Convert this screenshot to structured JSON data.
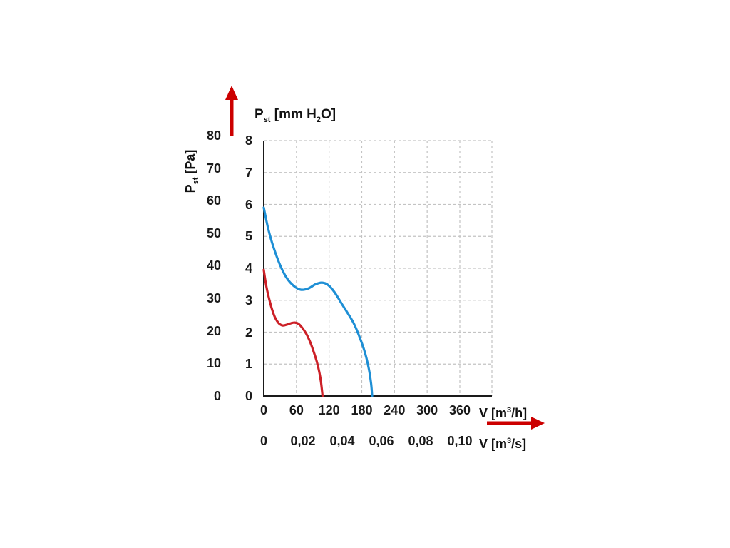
{
  "chart_data": {
    "type": "line",
    "title_parts": {
      "symbol": "P",
      "symbol_sub": "st",
      "unit_pre": " [mm H",
      "unit_sub": "2",
      "unit_post": "O]"
    },
    "y_axis_pa": {
      "label_parts": {
        "symbol": "P",
        "symbol_sub": "st",
        "unit": " [Pa]"
      },
      "pa_per_mm_h2o": 9.80665,
      "ticks": [
        {
          "label": "80",
          "value": 80
        },
        {
          "label": "70",
          "value": 70
        },
        {
          "label": "60",
          "value": 60
        },
        {
          "label": "50",
          "value": 50
        },
        {
          "label": "40",
          "value": 40
        },
        {
          "label": "30",
          "value": 30
        },
        {
          "label": "20",
          "value": 20
        },
        {
          "label": "10",
          "value": 10
        },
        {
          "label": "0",
          "value": 0
        }
      ]
    },
    "y_axis_mm": {
      "range": [
        0,
        8
      ],
      "ticks": [
        {
          "label": "8",
          "value": 8
        },
        {
          "label": "7",
          "value": 7
        },
        {
          "label": "6",
          "value": 6
        },
        {
          "label": "5",
          "value": 5
        },
        {
          "label": "4",
          "value": 4
        },
        {
          "label": "3",
          "value": 3
        },
        {
          "label": "2",
          "value": 2
        },
        {
          "label": "1",
          "value": 1
        },
        {
          "label": "0",
          "value": 0
        }
      ]
    },
    "x_axis_m3h": {
      "label_parts": {
        "pre": "V [m",
        "sup": "3",
        "post": "/h]"
      },
      "range": [
        0,
        420
      ],
      "ticks": [
        {
          "label": "0",
          "value": 0
        },
        {
          "label": "60",
          "value": 60
        },
        {
          "label": "120",
          "value": 120
        },
        {
          "label": "180",
          "value": 180
        },
        {
          "label": "240",
          "value": 240
        },
        {
          "label": "300",
          "value": 300
        },
        {
          "label": "360",
          "value": 360
        }
      ]
    },
    "x_axis_m3s": {
      "label_parts": {
        "pre": "V [m",
        "sup": "3",
        "post": "/s]"
      },
      "m3h_per_m3s": 3600,
      "ticks": [
        {
          "label": "0",
          "value": 0
        },
        {
          "label": "0,02",
          "value": 0.02
        },
        {
          "label": "0,04",
          "value": 0.04
        },
        {
          "label": "0,06",
          "value": 0.06
        },
        {
          "label": "0,08",
          "value": 0.08
        },
        {
          "label": "0,10",
          "value": 0.1
        }
      ]
    },
    "series": [
      {
        "name": "curve-blue",
        "color": "#1e8fd5",
        "points": [
          [
            0,
            5.9
          ],
          [
            8,
            5.25
          ],
          [
            18,
            4.65
          ],
          [
            30,
            4.1
          ],
          [
            42,
            3.7
          ],
          [
            55,
            3.45
          ],
          [
            68,
            3.33
          ],
          [
            82,
            3.37
          ],
          [
            95,
            3.5
          ],
          [
            107,
            3.55
          ],
          [
            118,
            3.48
          ],
          [
            130,
            3.25
          ],
          [
            142,
            2.92
          ],
          [
            154,
            2.6
          ],
          [
            166,
            2.25
          ],
          [
            177,
            1.8
          ],
          [
            186,
            1.35
          ],
          [
            193,
            0.85
          ],
          [
            197,
            0.4
          ],
          [
            199,
            0
          ]
        ]
      },
      {
        "name": "curve-red",
        "color": "#cc2027",
        "points": [
          [
            0,
            3.95
          ],
          [
            4,
            3.5
          ],
          [
            9,
            3.1
          ],
          [
            15,
            2.72
          ],
          [
            21,
            2.45
          ],
          [
            28,
            2.27
          ],
          [
            35,
            2.21
          ],
          [
            43,
            2.24
          ],
          [
            50,
            2.28
          ],
          [
            57,
            2.3
          ],
          [
            64,
            2.26
          ],
          [
            71,
            2.13
          ],
          [
            78,
            1.95
          ],
          [
            85,
            1.7
          ],
          [
            91,
            1.42
          ],
          [
            97,
            1.1
          ],
          [
            102,
            0.75
          ],
          [
            105,
            0.45
          ],
          [
            108,
            0
          ]
        ]
      }
    ],
    "grid": {
      "color": "#c3c3c3",
      "dash": "4 3"
    },
    "axis_color": "#1a1a1a",
    "arrow_color": "#cc0000"
  }
}
